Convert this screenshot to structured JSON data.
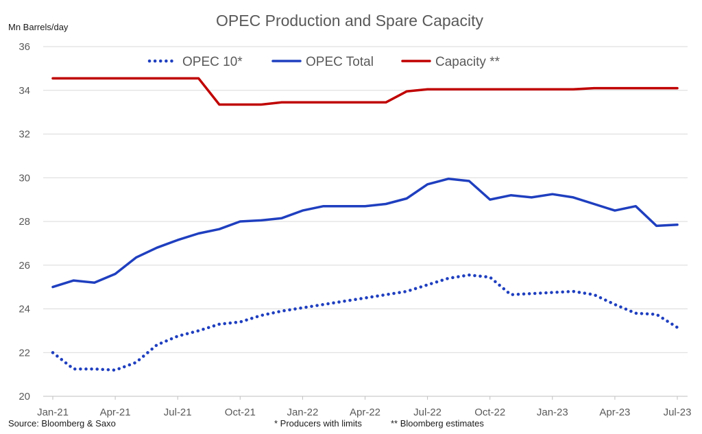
{
  "chart_data": {
    "type": "line",
    "title": "OPEC Production and Spare Capacity",
    "ylabel": "Mn Barrels/day",
    "ylim": [
      20,
      36
    ],
    "yticks": [
      20,
      22,
      24,
      26,
      28,
      30,
      32,
      34,
      36
    ],
    "x": [
      "Jan-21",
      "Feb-21",
      "Mar-21",
      "Apr-21",
      "May-21",
      "Jun-21",
      "Jul-21",
      "Aug-21",
      "Sep-21",
      "Oct-21",
      "Nov-21",
      "Dec-21",
      "Jan-22",
      "Feb-22",
      "Mar-22",
      "Apr-22",
      "May-22",
      "Jun-22",
      "Jul-22",
      "Aug-22",
      "Sep-22",
      "Oct-22",
      "Nov-22",
      "Dec-22",
      "Jan-23",
      "Feb-23",
      "Mar-23",
      "Apr-23",
      "May-23",
      "Jun-23",
      "Jul-23"
    ],
    "xtick_labels": [
      "Jan-21",
      "Apr-21",
      "Jul-21",
      "Oct-21",
      "Jan-22",
      "Apr-22",
      "Jul-22",
      "Oct-22",
      "Jan-23",
      "Apr-23",
      "Jul-23"
    ],
    "series": [
      {
        "name": "OPEC 10*",
        "style": "dotted",
        "color": "#1f3fbf",
        "values": [
          22.0,
          21.25,
          21.25,
          21.2,
          21.55,
          22.35,
          22.75,
          23.0,
          23.3,
          23.4,
          23.7,
          23.9,
          24.05,
          24.2,
          24.35,
          24.5,
          24.65,
          24.8,
          25.1,
          25.4,
          25.55,
          25.45,
          24.65,
          24.7,
          24.75,
          24.8,
          24.65,
          24.2,
          23.8,
          23.75,
          23.15
        ]
      },
      {
        "name": "OPEC Total",
        "style": "solid",
        "color": "#1f3fbf",
        "values": [
          25.0,
          25.3,
          25.2,
          25.6,
          26.35,
          26.8,
          27.15,
          27.45,
          27.65,
          28.0,
          28.05,
          28.15,
          28.5,
          28.7,
          28.7,
          28.7,
          28.8,
          29.05,
          29.7,
          29.95,
          29.85,
          29.0,
          29.2,
          29.1,
          29.25,
          29.1,
          28.8,
          28.5,
          28.7,
          27.8,
          27.85
        ]
      },
      {
        "name": "Capacity **",
        "style": "solid",
        "color": "#c00000",
        "values": [
          34.55,
          34.55,
          34.55,
          34.55,
          34.55,
          34.55,
          34.55,
          34.55,
          33.35,
          33.35,
          33.35,
          33.45,
          33.45,
          33.45,
          33.45,
          33.45,
          33.45,
          33.95,
          34.05,
          34.05,
          34.05,
          34.05,
          34.05,
          34.05,
          34.05,
          34.05,
          34.1,
          34.1,
          34.1,
          34.1,
          34.1
        ]
      }
    ],
    "legend_position": "top",
    "grid": true
  },
  "footer": {
    "source": "Source: Bloomberg & Saxo",
    "note1": "* Producers with limits",
    "note2": "** Bloomberg estimates"
  }
}
